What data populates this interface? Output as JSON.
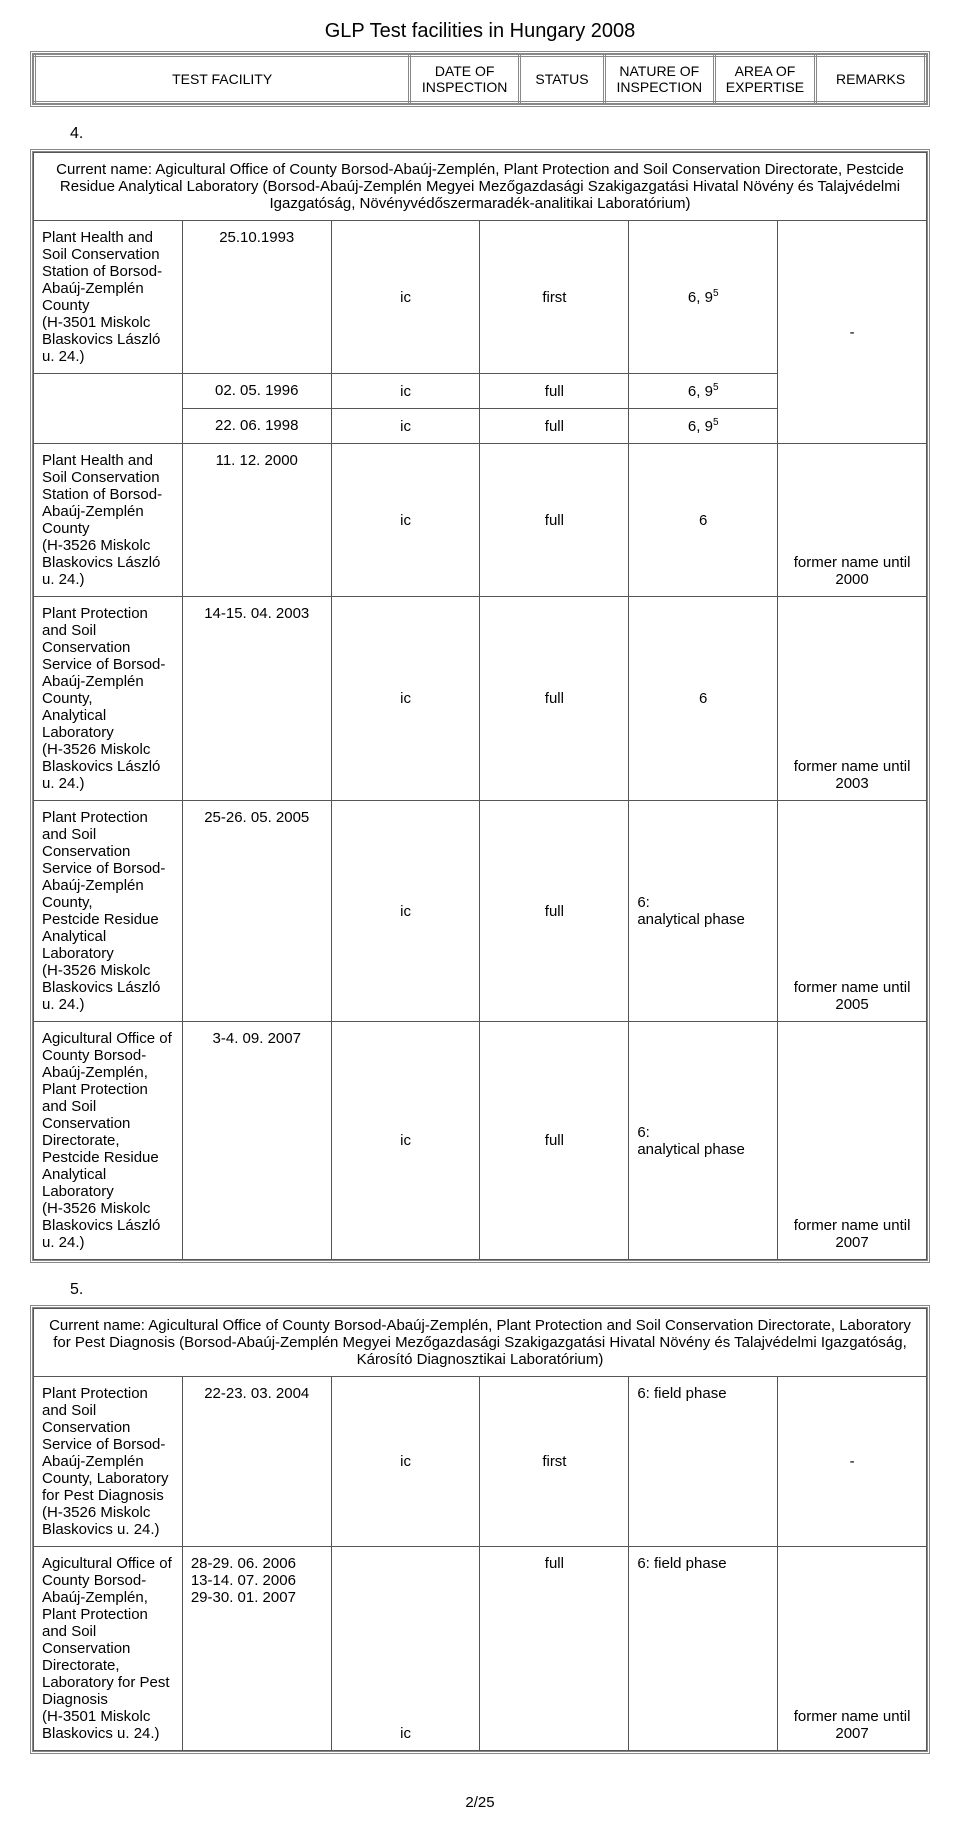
{
  "page": {
    "title": "GLP Test facilities in Hungary 2008",
    "page_number": "2/25"
  },
  "header": {
    "cols": [
      "TEST FACILITY",
      "DATE OF INSPECTION",
      "STATUS",
      "NATURE OF INSPECTION",
      "AREA OF EXPERTISE",
      "REMARKS"
    ]
  },
  "section4": {
    "num": "4.",
    "head": "Current name: Agicultural Office of County Borsod-Abaúj-Zemplén, Plant Protection and Soil Conservation Directorate, Pestcide Residue Analytical Laboratory (Borsod-Abaúj-Zemplén Megyei Mezőgazdasági Szakigazgatási Hivatal Növény és Talajvédelmi Igazgatóság, Növényvédőszermaradék-analitikai Laboratórium)",
    "r1": {
      "facility": "Plant Health and Soil Conservation Station of Borsod-Abaúj-Zemplén County\n(H-3501 Miskolc Blaskovics László u. 24.)",
      "date": "25.10.1993",
      "status": "ic",
      "nature": "first",
      "area": "6, 9",
      "sup": "5",
      "remarks": "-"
    },
    "r2": {
      "date": "02. 05. 1996",
      "status": "ic",
      "nature": "full",
      "area": "6, 9",
      "sup": "5"
    },
    "r3": {
      "date": "22. 06. 1998",
      "status": "ic",
      "nature": "full",
      "area": "6, 9",
      "sup": "5"
    },
    "r4": {
      "facility": "Plant Health and Soil Conservation Station of Borsod-Abaúj-Zemplén County\n(H-3526 Miskolc Blaskovics László u. 24.)",
      "date": "11. 12. 2000",
      "status": "ic",
      "nature": "full",
      "area": "6",
      "remarks": "former name until 2000"
    },
    "r5": {
      "facility": "Plant Protection and Soil Conservation Service of Borsod-Abaúj-Zemplén County,\nAnalytical Laboratory\n(H-3526 Miskolc Blaskovics László u. 24.)",
      "date": "14-15. 04. 2003",
      "status": "ic",
      "nature": "full",
      "area": "6",
      "remarks": "former name until 2003"
    },
    "r6": {
      "facility": "Plant Protection and Soil Conservation Service of Borsod-Abaúj-Zemplén County,\nPestcide Residue Analytical Laboratory\n(H-3526 Miskolc Blaskovics László u. 24.)",
      "date": "25-26. 05. 2005",
      "status": "ic",
      "nature": "full",
      "area": "6:\nanalytical phase",
      "remarks": "former name until 2005"
    },
    "r7": {
      "facility": "Agicultural Office of County Borsod-Abaúj-Zemplén, Plant Protection and Soil Conservation Directorate, Pestcide Residue Analytical Laboratory\n(H-3526 Miskolc Blaskovics László u. 24.)",
      "date": "3-4. 09. 2007",
      "status": "ic",
      "nature": "full",
      "area": "6:\nanalytical phase",
      "remarks": "former name until 2007"
    }
  },
  "section5": {
    "num": "5.",
    "head": "Current name: Agicultural Office of County Borsod-Abaúj-Zemplén, Plant Protection and Soil Conservation Directorate, Laboratory for Pest Diagnosis (Borsod-Abaúj-Zemplén Megyei Mezőgazdasági Szakigazgatási Hivatal Növény és Talajvédelmi Igazgatóság, Károsító Diagnosztikai Laboratórium)",
    "r1": {
      "facility": "Plant Protection and Soil Conservation Service of Borsod-Abaúj-Zemplén County, Laboratory for Pest Diagnosis\n(H-3526 Miskolc Blaskovics u. 24.)",
      "date": "22-23. 03. 2004",
      "status": "ic",
      "nature": "first",
      "area": "6: field phase",
      "remarks": "-"
    },
    "r2": {
      "facility": "Agicultural Office of County Borsod-Abaúj-Zemplén, Plant Protection and Soil Conservation Directorate, Laboratory for Pest Diagnosis\n(H-3501 Miskolc Blaskovics u. 24.)",
      "date": "28-29. 06. 2006\n13-14. 07. 2006\n29-30. 01. 2007",
      "status": "ic",
      "nature": "full",
      "area": "6: field phase",
      "remarks": "former name until 2007"
    }
  }
}
